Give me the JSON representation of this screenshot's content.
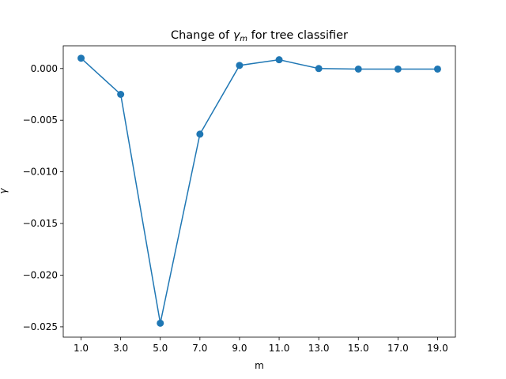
{
  "chart_data": {
    "type": "line",
    "title_prefix": "Change of ",
    "title_symbol": "γ",
    "title_subscript": "m",
    "title_suffix": " for tree classifier",
    "xlabel": "m",
    "ylabel": "γ",
    "x": [
      1,
      3,
      5,
      7,
      9,
      11,
      13,
      15,
      17,
      19
    ],
    "series": [
      {
        "values": [
          0.001,
          -0.0025,
          -0.02465,
          -0.00635,
          0.0003,
          0.00085,
          0.0,
          -5e-05,
          -5e-05,
          -5e-05
        ],
        "color": "#1f77b4"
      }
    ],
    "xlim": [
      0.1,
      19.9
    ],
    "ylim": [
      -0.026,
      0.0022
    ],
    "xticks": [
      1,
      3,
      5,
      7,
      9,
      11,
      13,
      15,
      17,
      19
    ],
    "xtick_labels": [
      "1.0",
      "3.0",
      "5.0",
      "7.0",
      "9.0",
      "11.0",
      "13.0",
      "15.0",
      "17.0",
      "19.0"
    ],
    "yticks": [
      0.0,
      -0.005,
      -0.01,
      -0.015,
      -0.02,
      -0.025
    ],
    "ytick_labels": [
      "0.000",
      "−0.005",
      "−0.010",
      "−0.015",
      "−0.020",
      "−0.025"
    ],
    "grid": false,
    "legend": "none"
  }
}
